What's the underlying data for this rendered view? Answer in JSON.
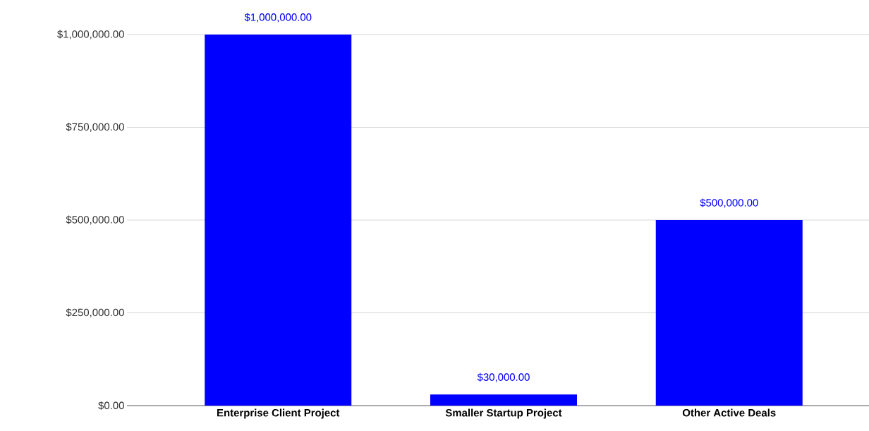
{
  "chart_data": {
    "type": "bar",
    "categories": [
      "Enterprise Client Project",
      "Smaller Startup Project",
      "Other Active Deals"
    ],
    "values": [
      1000000,
      30000,
      500000
    ],
    "color": "#0000ff",
    "value_labels": [
      "$1,000,000.00",
      "$30,000.00",
      "$500,000.00"
    ],
    "ylim": [
      0,
      1000000
    ],
    "yticks": [
      {
        "value": 0,
        "label": "$0.00"
      },
      {
        "value": 250000,
        "label": "$250,000.00"
      },
      {
        "value": 500000,
        "label": "$500,000.00"
      },
      {
        "value": 750000,
        "label": "$750,000.00"
      },
      {
        "value": 1000000,
        "label": "$1,000,000.00"
      }
    ],
    "grid": "y"
  }
}
